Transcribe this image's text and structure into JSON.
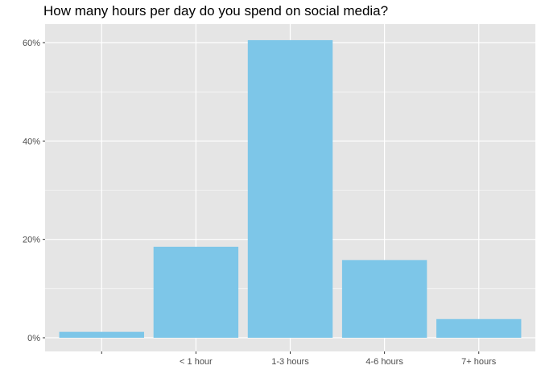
{
  "chart_data": {
    "type": "bar",
    "title": "How many hours per day do you spend on social media?",
    "xlabel": "",
    "ylabel": "",
    "categories": [
      "",
      "< 1 hour",
      "1-3 hours",
      "4-6 hours",
      "7+ hours"
    ],
    "values": [
      0.012,
      0.185,
      0.605,
      0.158,
      0.038
    ],
    "ylim": [
      0,
      0.63
    ],
    "y_ticks": [
      0,
      0.2,
      0.4,
      0.6
    ],
    "y_tick_labels": [
      "0%",
      "20%",
      "40%",
      "60%"
    ],
    "bar_color": "#7dc6e8",
    "panel_background": "#e5e5e5",
    "grid_color": "#ffffff",
    "grid": true,
    "legend": "none"
  }
}
